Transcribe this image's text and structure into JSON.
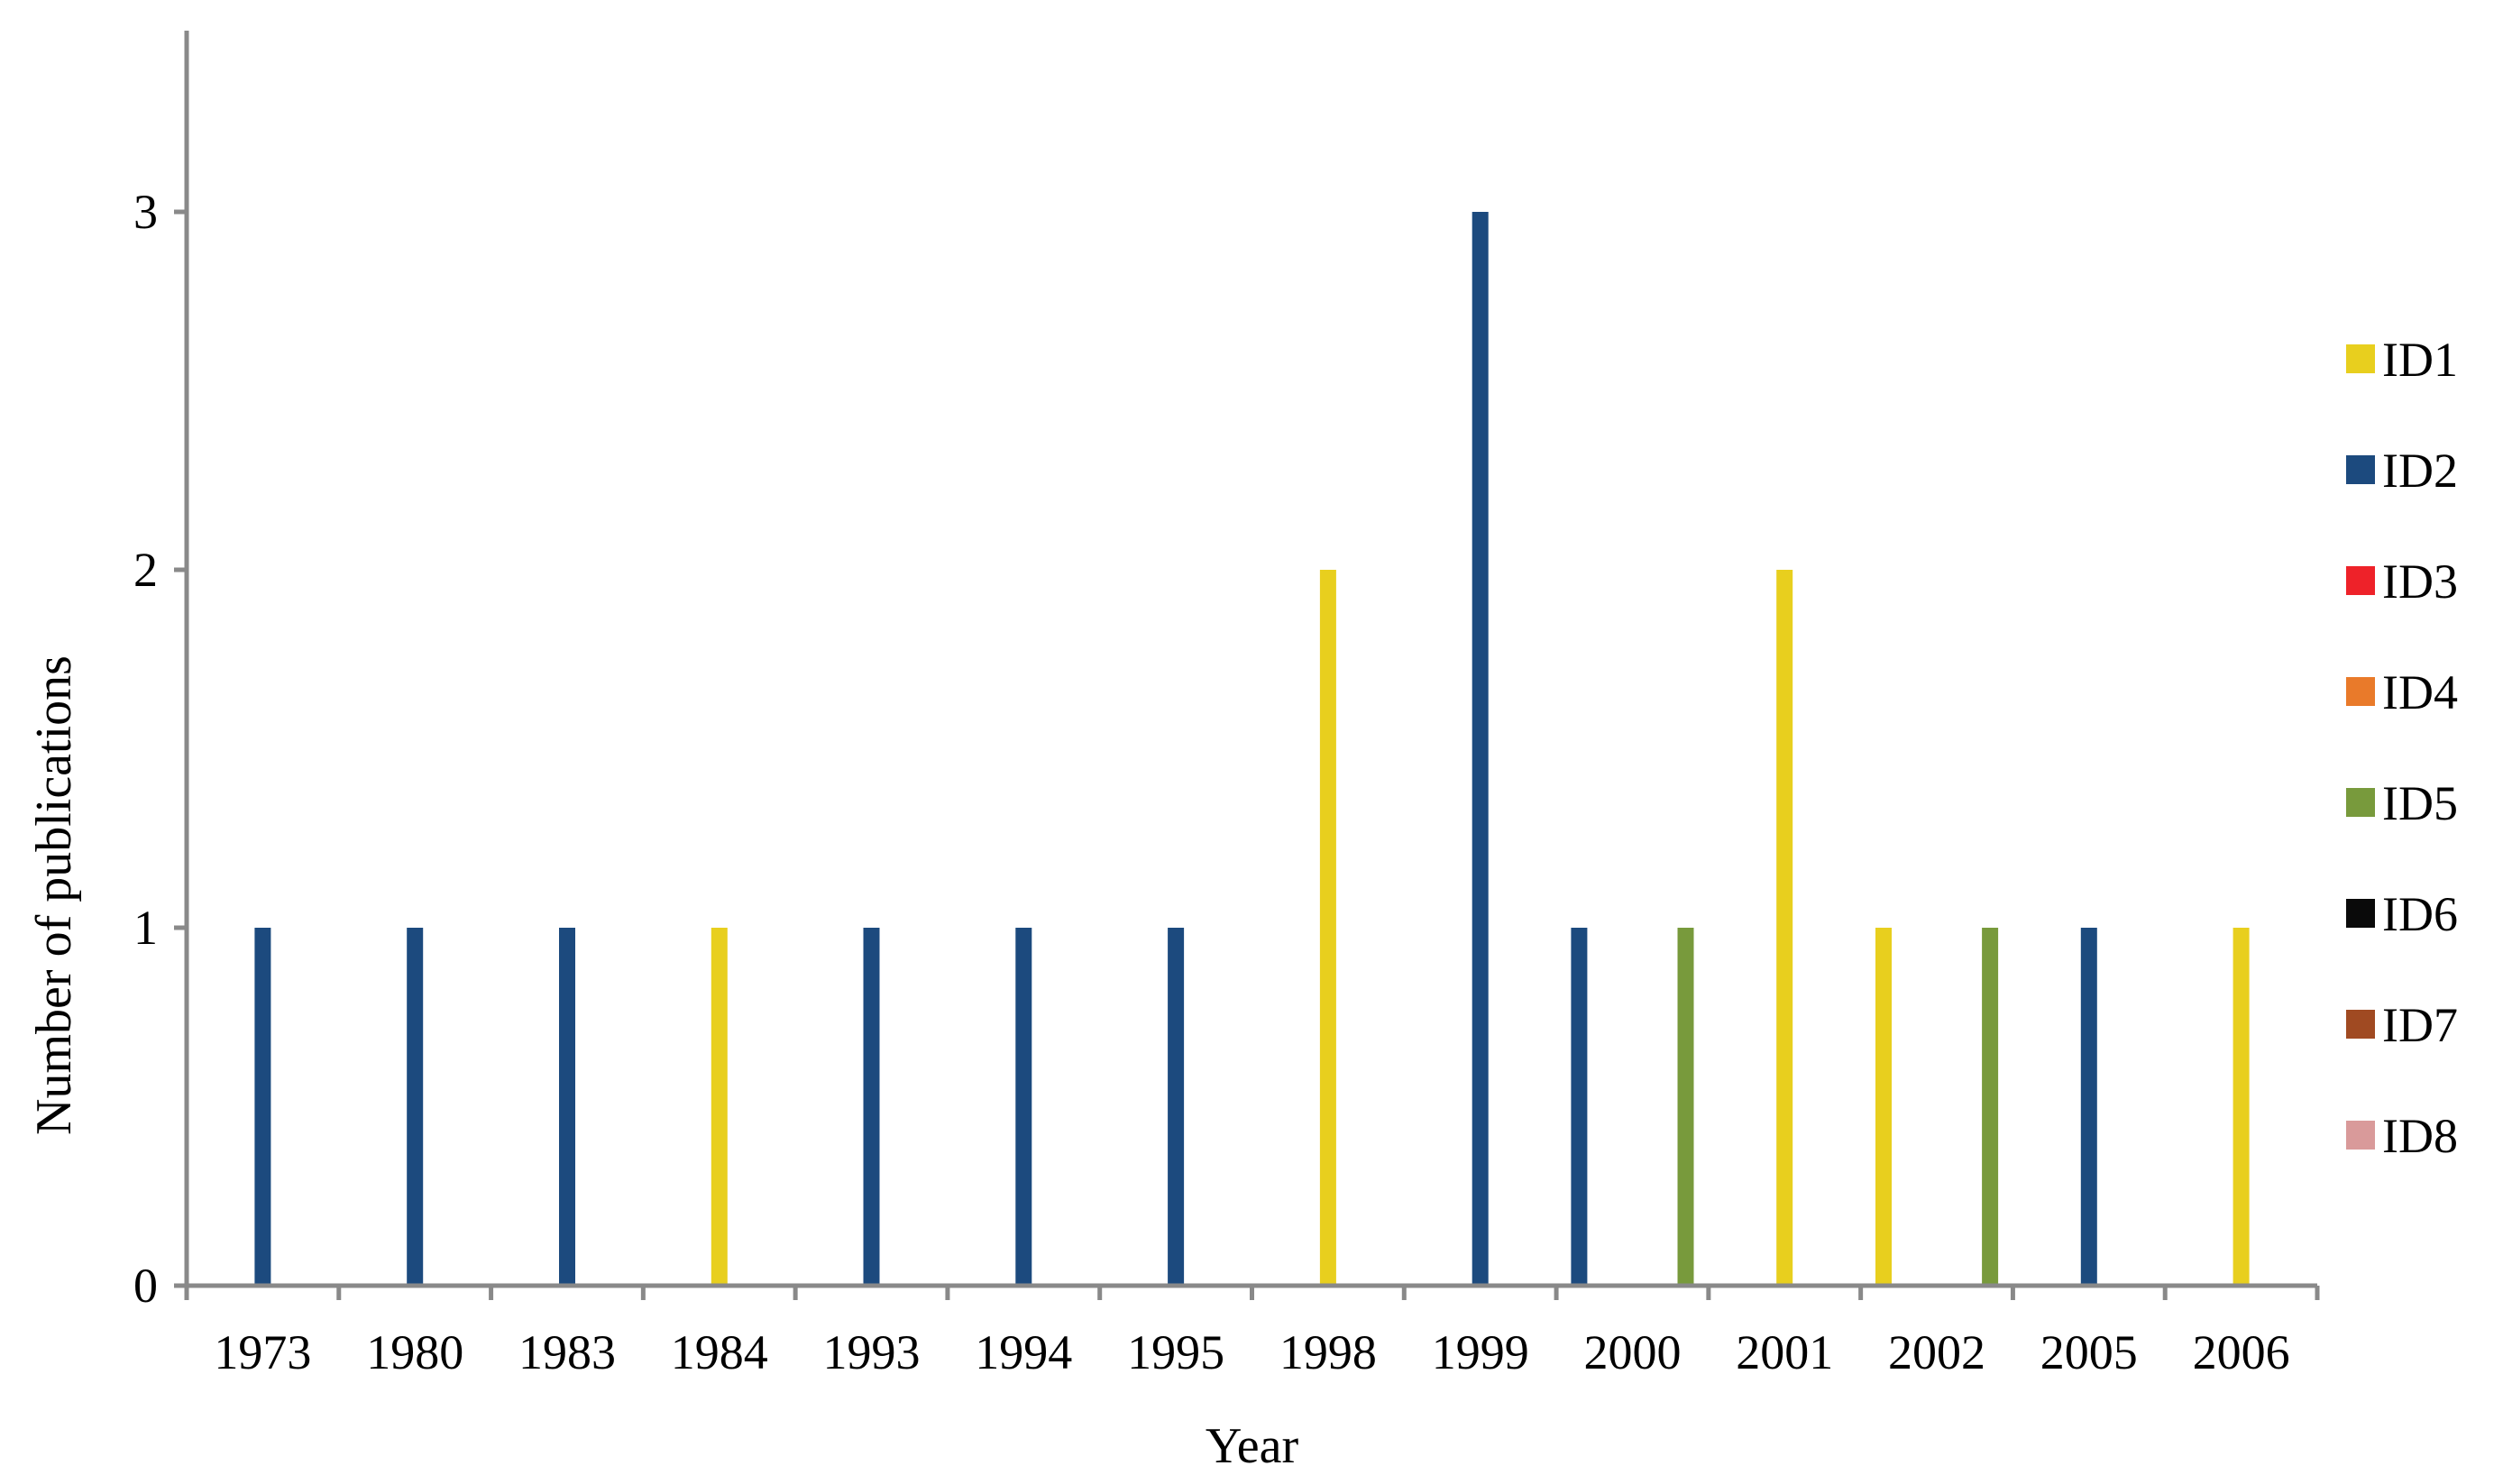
{
  "chart_data": {
    "type": "bar",
    "title": "",
    "xlabel": "Year",
    "ylabel": "Number of publications",
    "ylim": [
      0,
      3.5
    ],
    "yticks": [
      0,
      1,
      2,
      3
    ],
    "grid": false,
    "legend_position": "right",
    "categories": [
      "1973",
      "1980",
      "1983",
      "1984",
      "1993",
      "1994",
      "1995",
      "1998",
      "1999",
      "2000",
      "2001",
      "2002",
      "2005",
      "2006"
    ],
    "series": [
      {
        "name": "ID1",
        "color": "#e8cf1e",
        "values": [
          0,
          0,
          0,
          1,
          0,
          0,
          0,
          2,
          0,
          0,
          2,
          1,
          0,
          1
        ]
      },
      {
        "name": "ID2",
        "color": "#1c4a7e",
        "values": [
          1,
          1,
          1,
          0,
          1,
          1,
          1,
          0,
          3,
          1,
          0,
          0,
          1,
          0
        ]
      },
      {
        "name": "ID3",
        "color": "#ee2229",
        "values": [
          0,
          0,
          0,
          0,
          0,
          0,
          0,
          0,
          0,
          0,
          0,
          0,
          0,
          0
        ]
      },
      {
        "name": "ID4",
        "color": "#e97a2a",
        "values": [
          0,
          0,
          0,
          0,
          0,
          0,
          0,
          0,
          0,
          0,
          0,
          0,
          0,
          0
        ]
      },
      {
        "name": "ID5",
        "color": "#789a3c",
        "values": [
          0,
          0,
          0,
          0,
          0,
          0,
          0,
          0,
          0,
          1,
          0,
          1,
          0,
          0
        ]
      },
      {
        "name": "ID6",
        "color": "#0a0a0a",
        "values": [
          0,
          0,
          0,
          0,
          0,
          0,
          0,
          0,
          0,
          0,
          0,
          0,
          0,
          0
        ]
      },
      {
        "name": "ID7",
        "color": "#a04a22",
        "values": [
          0,
          0,
          0,
          0,
          0,
          0,
          0,
          0,
          0,
          0,
          0,
          0,
          0,
          0
        ]
      },
      {
        "name": "ID8",
        "color": "#d99a9a",
        "values": [
          0,
          0,
          0,
          0,
          0,
          0,
          0,
          0,
          0,
          0,
          0,
          0,
          0,
          0
        ]
      }
    ]
  }
}
